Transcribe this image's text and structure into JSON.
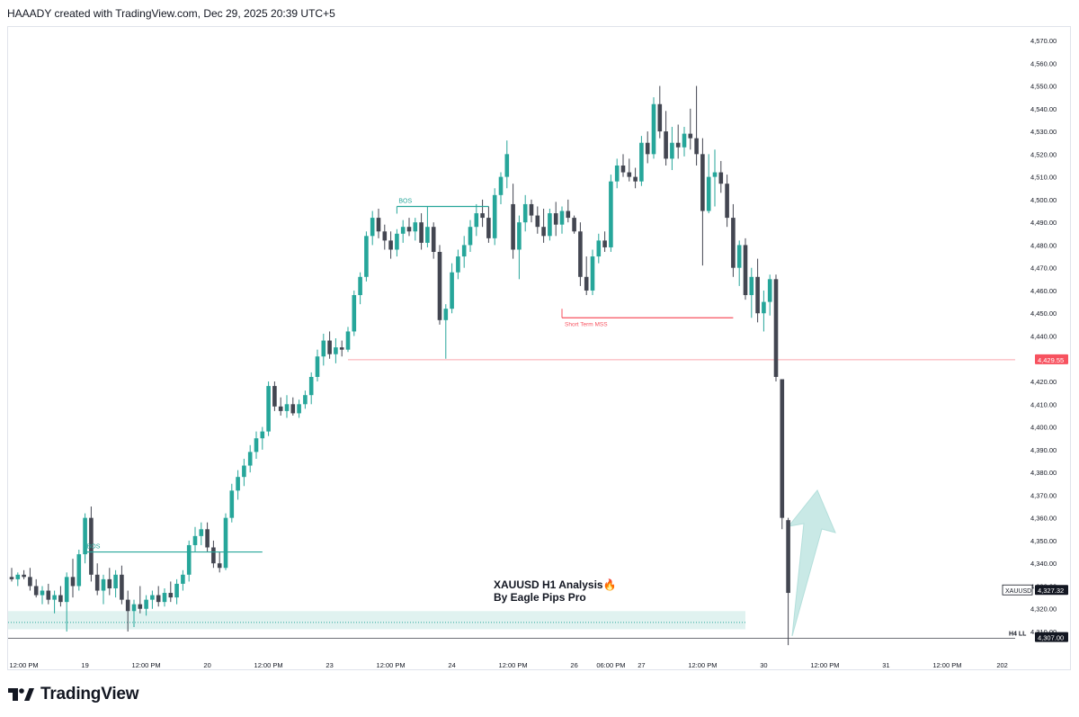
{
  "header": {
    "text": "HAAADY created with TradingView.com, Dec 29, 2025 20:39 UTC+5"
  },
  "footer": {
    "logo_text": "TradingView",
    "logo_icon": "tradingview-logo-icon"
  },
  "colors": {
    "bull": "#26a69a",
    "bear": "#434651",
    "alert_line": "#f7525f",
    "zone": "#d8efec",
    "arrow": "#c9e9e6"
  },
  "chart_data": {
    "type": "candlestick",
    "symbol": "XAUUSD",
    "timeframe": "H1",
    "y_ticks": [
      "4,570.00",
      "4,560.00",
      "4,550.00",
      "4,540.00",
      "4,530.00",
      "4,520.00",
      "4,510.00",
      "4,500.00",
      "4,490.00",
      "4,480.00",
      "4,470.00",
      "4,460.00",
      "4,450.00",
      "4,440.00",
      "4,420.00",
      "4,410.00",
      "4,400.00",
      "4,390.00",
      "4,380.00",
      "4,370.00",
      "4,360.00",
      "4,350.00",
      "4,340.00",
      "4,330.00",
      "4,320.00",
      "4,310.00"
    ],
    "y_tick_values": [
      4570,
      4560,
      4550,
      4540,
      4530,
      4520,
      4510,
      4500,
      4490,
      4480,
      4470,
      4460,
      4450,
      4440,
      4420,
      4410,
      4400,
      4390,
      4380,
      4370,
      4360,
      4350,
      4340,
      4330,
      4320,
      4310
    ],
    "x_ticks": [
      {
        "label": "12:00 PM",
        "index": 2
      },
      {
        "label": "19",
        "index": 12
      },
      {
        "label": "12:00 PM",
        "index": 22
      },
      {
        "label": "20",
        "index": 32
      },
      {
        "label": "12:00 PM",
        "index": 42
      },
      {
        "label": "23",
        "index": 52
      },
      {
        "label": "12:00 PM",
        "index": 62
      },
      {
        "label": "24",
        "index": 72
      },
      {
        "label": "12:00 PM",
        "index": 82
      },
      {
        "label": "26",
        "index": 92
      },
      {
        "label": "06:00 PM",
        "index": 98
      },
      {
        "label": "27",
        "index": 103
      },
      {
        "label": "12:00 PM",
        "index": 113
      },
      {
        "label": "30",
        "index": 123
      },
      {
        "label": "12:00 PM",
        "index": 133
      },
      {
        "label": "31",
        "index": 143
      },
      {
        "label": "12:00 PM",
        "index": 153
      },
      {
        "label": "202",
        "index": 162
      }
    ],
    "candles": [
      [
        4334,
        4338,
        4332,
        4333
      ],
      [
        4333,
        4336,
        4330,
        4335
      ],
      [
        4335,
        4337,
        4333,
        4334
      ],
      [
        4334,
        4338,
        4328,
        4330
      ],
      [
        4330,
        4333,
        4325,
        4326
      ],
      [
        4326,
        4330,
        4322,
        4328
      ],
      [
        4328,
        4331,
        4322,
        4324
      ],
      [
        4324,
        4328,
        4318,
        4326
      ],
      [
        4326,
        4330,
        4321,
        4323
      ],
      [
        4323,
        4336,
        4310,
        4334
      ],
      [
        4334,
        4342,
        4325,
        4330
      ],
      [
        4330,
        4346,
        4328,
        4344
      ],
      [
        4344,
        4362,
        4340,
        4360
      ],
      [
        4360,
        4365,
        4332,
        4335
      ],
      [
        4335,
        4340,
        4326,
        4328
      ],
      [
        4328,
        4335,
        4322,
        4333
      ],
      [
        4333,
        4338,
        4326,
        4329
      ],
      [
        4329,
        4337,
        4325,
        4335
      ],
      [
        4335,
        4339,
        4322,
        4324
      ],
      [
        4324,
        4328,
        4310,
        4319
      ],
      [
        4319,
        4324,
        4312,
        4322
      ],
      [
        4322,
        4330,
        4318,
        4320
      ],
      [
        4320,
        4326,
        4317,
        4324
      ],
      [
        4324,
        4328,
        4320,
        4326
      ],
      [
        4326,
        4330,
        4321,
        4323
      ],
      [
        4323,
        4329,
        4321,
        4327
      ],
      [
        4327,
        4332,
        4323,
        4325
      ],
      [
        4325,
        4333,
        4322,
        4331
      ],
      [
        4331,
        4337,
        4328,
        4335
      ],
      [
        4335,
        4350,
        4332,
        4348
      ],
      [
        4348,
        4356,
        4345,
        4352
      ],
      [
        4352,
        4358,
        4348,
        4355
      ],
      [
        4355,
        4358,
        4345,
        4347
      ],
      [
        4347,
        4350,
        4338,
        4340
      ],
      [
        4340,
        4345,
        4336,
        4338
      ],
      [
        4338,
        4362,
        4337,
        4360
      ],
      [
        4360,
        4375,
        4358,
        4372
      ],
      [
        4372,
        4381,
        4368,
        4378
      ],
      [
        4378,
        4386,
        4374,
        4383
      ],
      [
        4383,
        4392,
        4380,
        4389
      ],
      [
        4389,
        4398,
        4386,
        4395
      ],
      [
        4395,
        4400,
        4390,
        4398
      ],
      [
        4398,
        4420,
        4396,
        4418
      ],
      [
        4418,
        4420,
        4407,
        4409
      ],
      [
        4409,
        4413,
        4405,
        4407
      ],
      [
        4407,
        4414,
        4404,
        4410
      ],
      [
        4410,
        4413,
        4405,
        4406
      ],
      [
        4406,
        4412,
        4404,
        4410
      ],
      [
        4410,
        4416,
        4408,
        4414
      ],
      [
        4414,
        4424,
        4410,
        4422
      ],
      [
        4422,
        4434,
        4420,
        4431
      ],
      [
        4431,
        4441,
        4427,
        4438
      ],
      [
        4438,
        4442,
        4430,
        4432
      ],
      [
        4432,
        4439,
        4428,
        4435
      ],
      [
        4435,
        4438,
        4431,
        4434
      ],
      [
        4434,
        4444,
        4433,
        4442
      ],
      [
        4442,
        4460,
        4440,
        4458
      ],
      [
        4458,
        4468,
        4454,
        4466
      ],
      [
        4466,
        4486,
        4464,
        4484
      ],
      [
        4484,
        4495,
        4480,
        4492
      ],
      [
        4492,
        4496,
        4483,
        4486
      ],
      [
        4486,
        4489,
        4478,
        4482
      ],
      [
        4482,
        4486,
        4474,
        4478
      ],
      [
        4478,
        4487,
        4475,
        4485
      ],
      [
        4485,
        4491,
        4481,
        4488
      ],
      [
        4488,
        4492,
        4484,
        4486
      ],
      [
        4486,
        4492,
        4482,
        4490
      ],
      [
        4490,
        4494,
        4478,
        4481
      ],
      [
        4481,
        4497,
        4479,
        4488
      ],
      [
        4488,
        4490,
        4474,
        4477
      ],
      [
        4477,
        4480,
        4445,
        4447
      ],
      [
        4447,
        4454,
        4430,
        4452
      ],
      [
        4452,
        4472,
        4450,
        4468
      ],
      [
        4468,
        4478,
        4465,
        4475
      ],
      [
        4475,
        4484,
        4470,
        4480
      ],
      [
        4480,
        4491,
        4477,
        4488
      ],
      [
        4488,
        4498,
        4484,
        4494
      ],
      [
        4494,
        4500,
        4488,
        4492
      ],
      [
        4492,
        4497,
        4481,
        4483
      ],
      [
        4483,
        4505,
        4480,
        4502
      ],
      [
        4502,
        4512,
        4498,
        4510
      ],
      [
        4510,
        4526,
        4505,
        4520
      ],
      [
        4498,
        4507,
        4474,
        4478
      ],
      [
        4478,
        4493,
        4465,
        4490
      ],
      [
        4490,
        4502,
        4486,
        4498
      ],
      [
        4498,
        4500,
        4490,
        4493
      ],
      [
        4493,
        4497,
        4485,
        4488
      ],
      [
        4488,
        4496,
        4481,
        4484
      ],
      [
        4484,
        4496,
        4482,
        4494
      ],
      [
        4494,
        4499,
        4484,
        4489
      ],
      [
        4489,
        4497,
        4485,
        4495
      ],
      [
        4495,
        4500,
        4490,
        4492
      ],
      [
        4492,
        4493,
        4485,
        4486
      ],
      [
        4486,
        4490,
        4462,
        4466
      ],
      [
        4466,
        4475,
        4458,
        4460
      ],
      [
        4460,
        4478,
        4458,
        4475
      ],
      [
        4475,
        4485,
        4472,
        4482
      ],
      [
        4482,
        4486,
        4477,
        4479
      ],
      [
        4479,
        4511,
        4477,
        4508
      ],
      [
        4508,
        4518,
        4505,
        4515
      ],
      [
        4515,
        4520,
        4510,
        4512
      ],
      [
        4512,
        4518,
        4508,
        4510
      ],
      [
        4510,
        4514,
        4505,
        4508
      ],
      [
        4508,
        4528,
        4506,
        4525
      ],
      [
        4525,
        4530,
        4516,
        4520
      ],
      [
        4520,
        4545,
        4518,
        4542
      ],
      [
        4542,
        4550,
        4527,
        4530
      ],
      [
        4530,
        4539,
        4515,
        4518
      ],
      [
        4518,
        4532,
        4513,
        4525
      ],
      [
        4525,
        4533,
        4518,
        4523
      ],
      [
        4523,
        4532,
        4519,
        4529
      ],
      [
        4529,
        4540,
        4522,
        4527
      ],
      [
        4527,
        4550,
        4515,
        4520
      ],
      [
        4520,
        4527,
        4471,
        4495
      ],
      [
        4495,
        4520,
        4494,
        4510
      ],
      [
        4510,
        4522,
        4497,
        4512
      ],
      [
        4512,
        4517,
        4503,
        4507
      ],
      [
        4507,
        4511,
        4488,
        4492
      ],
      [
        4492,
        4498,
        4466,
        4470
      ],
      [
        4470,
        4482,
        4462,
        4480
      ],
      [
        4480,
        4483,
        4456,
        4458
      ],
      [
        4458,
        4470,
        4448,
        4466
      ],
      [
        4466,
        4474,
        4446,
        4450
      ],
      [
        4450,
        4460,
        4442,
        4455
      ],
      [
        4455,
        4467,
        4449,
        4465
      ],
      [
        4465,
        4467,
        4420,
        4422
      ],
      [
        4421,
        4421,
        4355,
        4360
      ],
      [
        4359,
        4360,
        4304,
        4327
      ]
    ],
    "annotations": [
      {
        "text": "BOS",
        "level": 4345,
        "start": 12,
        "end": 41
      },
      {
        "text": "BOS",
        "level": 4497,
        "start": 63,
        "end": 78
      },
      {
        "text": "Short Term MSS",
        "level": 4448,
        "start": 90,
        "end": 118
      },
      {
        "text": "H4 LL",
        "level": 4307
      }
    ],
    "price_labels": [
      {
        "text": "4,429.55",
        "value": 4429.55
      },
      {
        "text": "4,327.32",
        "value": 4327.32
      },
      {
        "text": "20:01"
      },
      {
        "text": "4,307.00",
        "value": 4307
      }
    ],
    "symbol_tag": "XAUUSD",
    "title_lines": [
      "XAUUSD H1 Analysis🔥",
      "By Eagle Pips Pro"
    ],
    "demand_zone": {
      "from": 4311,
      "to": 4319,
      "dotted": 4314
    },
    "ylim": [
      4302,
      4578
    ],
    "grid": false
  }
}
